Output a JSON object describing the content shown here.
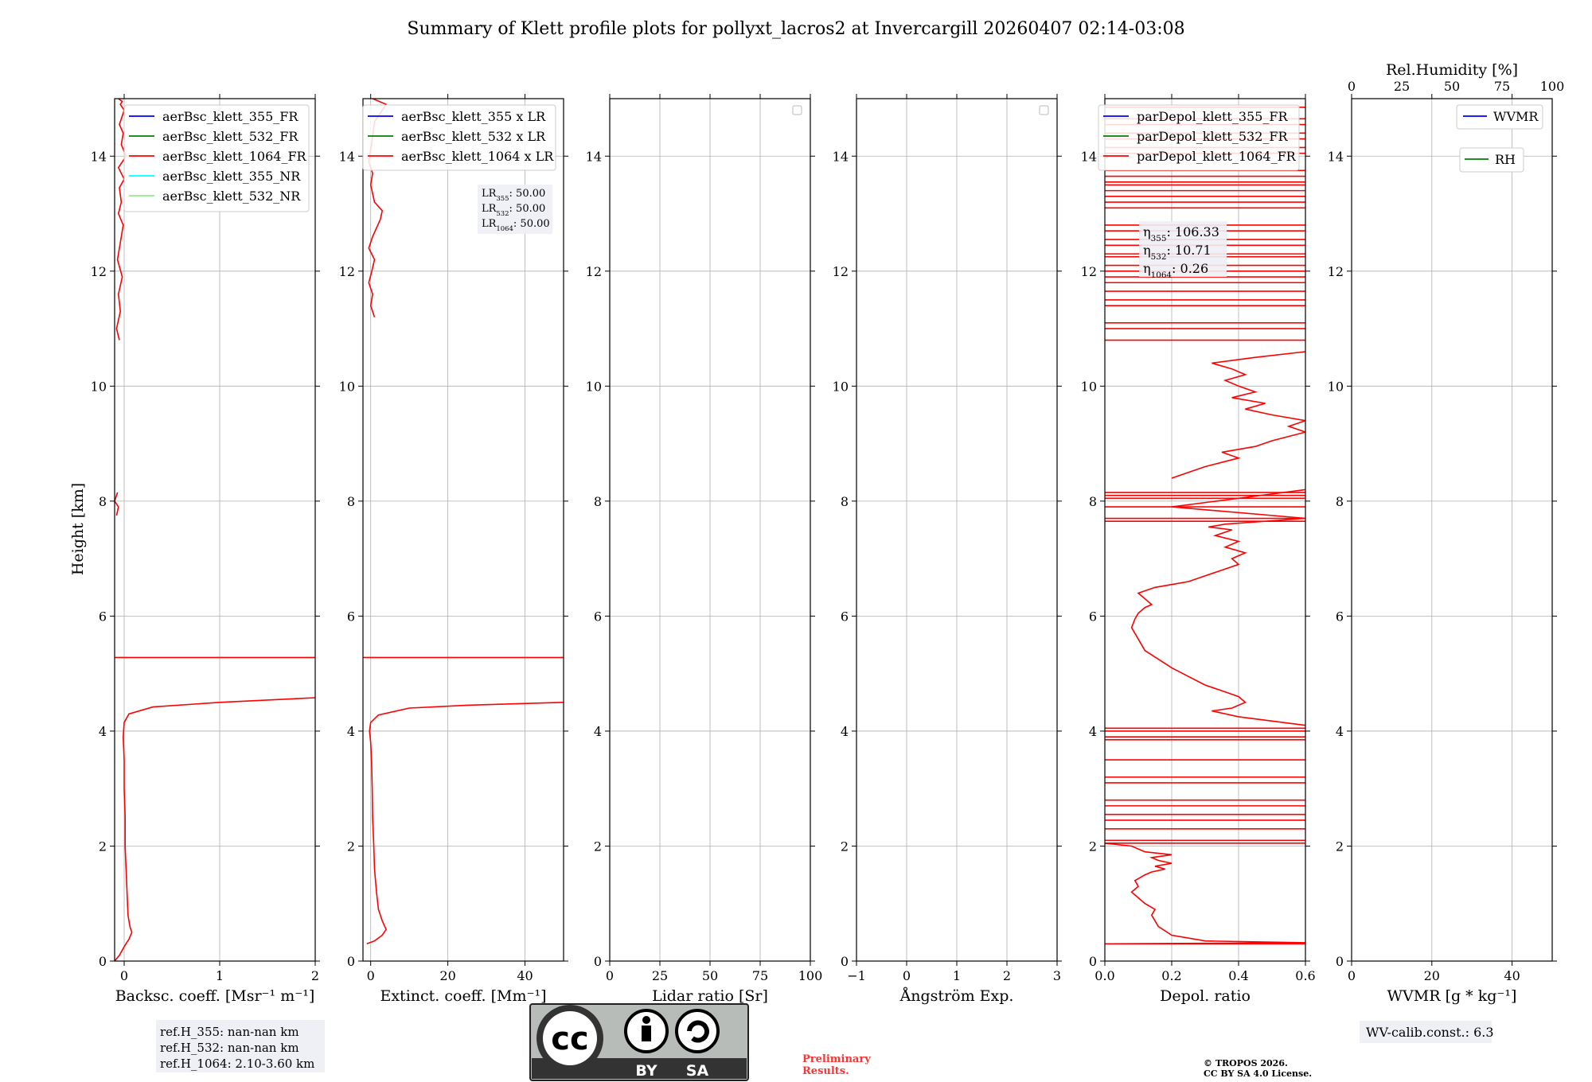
{
  "title": "Summary of Klett profile plots for pollyxt_lacros2 at Invercargill 20260407 02:14-03:08",
  "ylabel": "Height [km]",
  "yticks": [
    "0",
    "2",
    "4",
    "6",
    "8",
    "10",
    "12",
    "14"
  ],
  "colors": {
    "blue": "#0000ff",
    "green": "#008000",
    "red": "#ff0000",
    "cyan": "#00ffff",
    "lightgreen": "#90ee90"
  },
  "chart_data": [
    {
      "type": "line",
      "xlabel": "Backsc. coeff. [Msr⁻¹ m⁻¹]",
      "xlim": [
        -0.1,
        2
      ],
      "ylim": [
        0,
        15
      ],
      "xticks": [
        "0",
        "1",
        "2"
      ],
      "legend": [
        "aerBsc_klett_355_FR",
        "aerBsc_klett_532_FR",
        "aerBsc_klett_1064_FR",
        "aerBsc_klett_355_NR",
        "aerBsc_klett_532_NR"
      ],
      "series": [
        {
          "name": "aerBsc_klett_1064_FR",
          "color": "red",
          "x": [
            -0.1,
            -0.05,
            0.0,
            0.05,
            0.08,
            0.06,
            0.04,
            0.03,
            0.02,
            0.01,
            0.01,
            0.0,
            0.0,
            -0.01,
            0.0,
            0.05,
            0.3,
            1.0,
            2.0
          ],
          "y": [
            0.0,
            0.1,
            0.25,
            0.38,
            0.5,
            0.6,
            0.8,
            1.2,
            1.6,
            2.0,
            2.5,
            3.0,
            3.5,
            3.9,
            4.15,
            4.3,
            4.42,
            4.5,
            4.58
          ]
        },
        {
          "name": "aerBsc_klett_1064_FR spike",
          "color": "red",
          "x": [
            -0.1,
            2.0
          ],
          "y": [
            5.28,
            5.28
          ]
        },
        {
          "name": "aerBsc_klett_1064_FR upper",
          "color": "red",
          "x": [
            -0.05,
            -0.08,
            -0.04,
            -0.06,
            -0.02,
            -0.07,
            -0.04,
            -0.01,
            -0.06,
            -0.03,
            -0.05,
            0.0,
            -0.06,
            0.02,
            -0.03,
            -0.01,
            -0.05,
            -0.02,
            0.0,
            -0.04,
            -0.02,
            -0.06
          ],
          "y": [
            10.8,
            11.0,
            11.3,
            11.6,
            11.9,
            12.2,
            12.5,
            12.8,
            13.0,
            13.2,
            13.45,
            13.6,
            13.8,
            14.0,
            14.2,
            14.4,
            14.55,
            14.7,
            14.8,
            14.9,
            14.95,
            15.0
          ]
        },
        {
          "name": "aerBsc_klett_1064_FR mid",
          "color": "red",
          "x": [
            -0.08,
            -0.06,
            -0.1,
            -0.07
          ],
          "y": [
            7.75,
            7.9,
            8.0,
            8.15
          ]
        }
      ]
    },
    {
      "type": "line",
      "xlabel": "Extinct. coeff. [Mm⁻¹]",
      "xlim": [
        -2,
        50
      ],
      "ylim": [
        0,
        15
      ],
      "xticks": [
        "0",
        "20",
        "40"
      ],
      "legend": [
        "aerBsc_klett_355 x LR",
        "aerBsc_klett_532 x LR",
        "aerBsc_klett_1064 x LR"
      ],
      "series": [
        {
          "name": "aerBsc_klett_1064 x LR",
          "color": "red",
          "x": [
            -1,
            1.0,
            3.0,
            4.0,
            3.0,
            2.0,
            1.5,
            1.0,
            0.8,
            0.5,
            0.4,
            0.2,
            0.0,
            -0.3,
            0.0,
            2.0,
            10.0,
            25.0,
            50.0
          ],
          "y": [
            0.3,
            0.35,
            0.45,
            0.55,
            0.7,
            0.9,
            1.2,
            1.6,
            2.0,
            2.5,
            3.0,
            3.5,
            3.8,
            4.0,
            4.15,
            4.28,
            4.4,
            4.45,
            4.5
          ]
        },
        {
          "name": "aerBsc_klett_1064 x LR spike",
          "color": "red",
          "x": [
            -2,
            50
          ],
          "y": [
            5.28,
            5.28
          ]
        },
        {
          "name": "aerBsc_klett_1064 x LR upper",
          "color": "red",
          "x": [
            1.0,
            0.0,
            0.5,
            -0.5,
            0.3,
            1.0,
            -0.5,
            0.5,
            2.5,
            3.0,
            1.0,
            0.0,
            0.5,
            -0.5,
            0.2,
            1.0,
            4.0,
            0.5
          ],
          "y": [
            11.2,
            11.4,
            11.6,
            11.8,
            12.0,
            12.2,
            12.4,
            12.6,
            12.9,
            13.05,
            13.2,
            13.5,
            13.7,
            13.9,
            14.2,
            14.6,
            14.9,
            15.0
          ]
        }
      ],
      "annotation": [
        {
          "label": "LR",
          "sub": "355",
          "value": ": 50.00"
        },
        {
          "label": "LR",
          "sub": "532",
          "value": ": 50.00"
        },
        {
          "label": "LR",
          "sub": "1064",
          "value": ": 50.00"
        }
      ]
    },
    {
      "type": "line",
      "xlabel": "Lidar ratio [Sr]",
      "xlim": [
        0,
        100
      ],
      "ylim": [
        0,
        15
      ],
      "xticks": [
        "0",
        "25",
        "50",
        "75",
        "100"
      ],
      "series": []
    },
    {
      "type": "line",
      "xlabel": "Ångström Exp.",
      "xlim": [
        -1,
        3
      ],
      "ylim": [
        0,
        15
      ],
      "xticks": [
        "−1",
        "0",
        "1",
        "2",
        "3"
      ],
      "series": []
    },
    {
      "type": "line",
      "xlabel": "Depol. ratio",
      "xlim": [
        0,
        0.6
      ],
      "ylim": [
        0,
        15
      ],
      "xticks": [
        "0.0",
        "0.2",
        "0.4",
        "0.6"
      ],
      "legend": [
        "parDepol_klett_355_FR",
        "parDepol_klett_532_FR",
        "parDepol_klett_1064_FR"
      ],
      "series": [
        {
          "name": "parDepol_klett_1064_FR",
          "color": "red",
          "x": [
            0.0,
            0.6,
            0.3,
            0.2,
            0.16,
            0.14,
            0.15,
            0.12,
            0.1,
            0.08,
            0.1,
            0.09,
            0.12,
            0.14,
            0.18,
            0.15,
            0.2,
            0.16,
            0.14,
            0.2,
            0.12,
            0.08,
            0.0
          ],
          "y": [
            0.3,
            0.32,
            0.35,
            0.45,
            0.6,
            0.8,
            0.9,
            1.0,
            1.1,
            1.2,
            1.3,
            1.4,
            1.5,
            1.55,
            1.6,
            1.65,
            1.7,
            1.75,
            1.8,
            1.85,
            1.9,
            2.0,
            2.05
          ]
        },
        {
          "name": "parDepol_klett_1064_FR mid",
          "color": "red",
          "x": [
            0.6,
            0.4,
            0.32,
            0.38,
            0.42,
            0.4,
            0.35,
            0.3,
            0.25,
            0.2,
            0.16,
            0.12,
            0.1,
            0.08,
            0.09,
            0.1,
            0.12,
            0.14,
            0.12,
            0.1,
            0.15,
            0.2,
            0.25,
            0.3,
            0.35,
            0.4,
            0.38,
            0.42,
            0.36,
            0.4,
            0.33,
            0.38,
            0.31,
            0.36,
            0.6,
            0.2,
            0.6
          ],
          "y": [
            4.1,
            4.25,
            4.35,
            4.4,
            4.5,
            4.6,
            4.7,
            4.8,
            4.95,
            5.1,
            5.25,
            5.4,
            5.6,
            5.8,
            5.95,
            6.05,
            6.15,
            6.2,
            6.3,
            6.4,
            6.5,
            6.55,
            6.6,
            6.7,
            6.8,
            6.9,
            7.0,
            7.1,
            7.2,
            7.3,
            7.4,
            7.5,
            7.55,
            7.6,
            7.7,
            7.9,
            8.2
          ]
        },
        {
          "name": "parDepol_klett_1064_FR upper",
          "color": "red",
          "x": [
            0.2,
            0.3,
            0.4,
            0.35,
            0.45,
            0.5,
            0.6,
            0.55,
            0.6,
            0.5,
            0.42,
            0.48,
            0.38,
            0.45,
            0.4,
            0.36,
            0.42,
            0.38,
            0.32,
            0.45,
            0.6
          ],
          "y": [
            8.4,
            8.6,
            8.75,
            8.85,
            8.95,
            9.05,
            9.2,
            9.3,
            9.4,
            9.5,
            9.6,
            9.7,
            9.8,
            9.9,
            10.0,
            10.1,
            10.2,
            10.3,
            10.4,
            10.5,
            10.6
          ]
        }
      ],
      "stripes": [
        0.3,
        2.05,
        2.1,
        2.3,
        2.45,
        2.55,
        2.7,
        2.8,
        3.1,
        3.2,
        3.5,
        3.85,
        3.9,
        4.0,
        4.05,
        7.65,
        7.7,
        7.9,
        8.05,
        8.1,
        8.15,
        10.8,
        11.0,
        11.1,
        11.4,
        11.5,
        11.65,
        11.8,
        11.9,
        12.0,
        12.1,
        12.25,
        12.3,
        12.45,
        12.55,
        12.7,
        12.8,
        13.1,
        13.2,
        13.3,
        13.4,
        13.5,
        13.55,
        13.65,
        13.75,
        14.05,
        14.15,
        14.3,
        14.4,
        14.55,
        14.65,
        14.85
      ],
      "annotation": [
        {
          "label": "η",
          "sub": "355",
          "value": ": 106.33"
        },
        {
          "label": "η",
          "sub": "532",
          "value": ": 10.71"
        },
        {
          "label": "η",
          "sub": "1064",
          "value": ": 0.26"
        }
      ]
    },
    {
      "type": "line",
      "xlabel": "WVMR [g * kg⁻¹]",
      "xlim": [
        0,
        50
      ],
      "ylim": [
        0,
        15
      ],
      "xticks": [
        "0",
        "20",
        "40"
      ],
      "top_axis_label": "Rel.Humidity [%]",
      "top_xticks": [
        "0",
        "25",
        "50",
        "75",
        "100"
      ],
      "legend": [
        "WVMR",
        "RH"
      ],
      "series": []
    }
  ],
  "footer": {
    "refH": [
      "ref.H_355: nan-nan km",
      "ref.H_532: nan-nan km",
      "ref.H_1064: 2.10-3.60 km"
    ],
    "preliminary": [
      "Preliminary",
      "Results."
    ],
    "copyright": [
      "© TROPOS 2026.",
      "CC BY SA 4.0 License."
    ],
    "wv_calib": "WV-calib.const.: 6.3",
    "cc_text": "cc",
    "cc_by": "BY",
    "cc_sa": "SA"
  }
}
